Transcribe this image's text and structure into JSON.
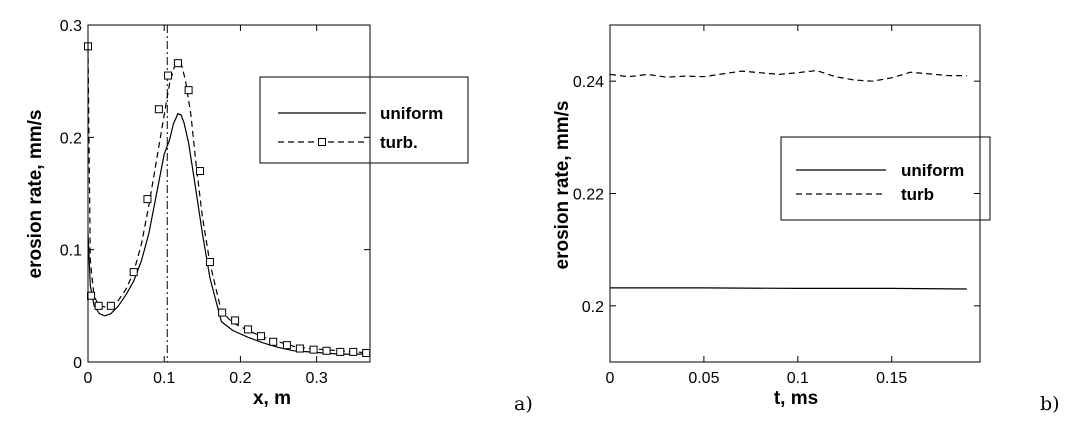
{
  "chart_data": [
    {
      "type": "line",
      "panel_label": "a)",
      "xlabel": "x, m",
      "ylabel": "erosion rate, mm/s",
      "xlim": [
        0,
        0.37
      ],
      "ylim": [
        0,
        0.3
      ],
      "x_ticks": [
        "0",
        "0.1",
        "0.2",
        "0.3"
      ],
      "y_ticks": [
        "0",
        "0.1",
        "0.2",
        "0.3"
      ],
      "x_tick_values": [
        0,
        0.1,
        0.2,
        0.3
      ],
      "y_tick_values": [
        0,
        0.1,
        0.2,
        0.3
      ],
      "vertical_reference_line_x": 0.104,
      "legend_position": "top-right",
      "series": [
        {
          "name": "uniform",
          "style": "solid",
          "x": [
            0,
            0.003,
            0.008,
            0.015,
            0.022,
            0.03,
            0.04,
            0.05,
            0.06,
            0.07,
            0.08,
            0.09,
            0.1,
            0.107,
            0.112,
            0.118,
            0.122,
            0.126,
            0.132,
            0.14,
            0.15,
            0.16,
            0.175,
            0.19,
            0.21,
            0.23,
            0.25,
            0.27,
            0.29,
            0.31,
            0.33,
            0.35,
            0.37
          ],
          "y": [
            0.115,
            0.068,
            0.05,
            0.043,
            0.041,
            0.043,
            0.05,
            0.06,
            0.072,
            0.09,
            0.115,
            0.15,
            0.185,
            0.198,
            0.212,
            0.221,
            0.22,
            0.213,
            0.195,
            0.16,
            0.115,
            0.075,
            0.036,
            0.028,
            0.022,
            0.017,
            0.013,
            0.01,
            0.009,
            0.008,
            0.007,
            0.007,
            0.007
          ]
        },
        {
          "name": "turb.",
          "style": "dashed",
          "markers": "square",
          "x": [
            0,
            0.003,
            0.008,
            0.015,
            0.022,
            0.03,
            0.04,
            0.05,
            0.06,
            0.07,
            0.08,
            0.09,
            0.1,
            0.107,
            0.113,
            0.118,
            0.123,
            0.128,
            0.135,
            0.142,
            0.15,
            0.16,
            0.175,
            0.19,
            0.21,
            0.23,
            0.25,
            0.27,
            0.29,
            0.31,
            0.33,
            0.35,
            0.37
          ],
          "y": [
            0.28,
            0.09,
            0.058,
            0.05,
            0.049,
            0.05,
            0.055,
            0.065,
            0.08,
            0.105,
            0.14,
            0.18,
            0.22,
            0.248,
            0.262,
            0.267,
            0.264,
            0.25,
            0.22,
            0.175,
            0.13,
            0.088,
            0.045,
            0.035,
            0.028,
            0.022,
            0.018,
            0.014,
            0.012,
            0.011,
            0.01,
            0.009,
            0.008
          ],
          "marker_x": [
            0,
            0.004,
            0.014,
            0.03,
            0.06,
            0.078,
            0.093,
            0.105,
            0.118,
            0.132,
            0.147,
            0.16,
            0.176,
            0.193,
            0.21,
            0.227,
            0.243,
            0.261,
            0.278,
            0.296,
            0.313,
            0.331,
            0.348,
            0.365
          ],
          "marker_y": [
            0.281,
            0.059,
            0.05,
            0.05,
            0.08,
            0.145,
            0.225,
            0.255,
            0.266,
            0.242,
            0.17,
            0.089,
            0.044,
            0.037,
            0.029,
            0.023,
            0.018,
            0.015,
            0.012,
            0.011,
            0.01,
            0.009,
            0.009,
            0.008
          ]
        }
      ]
    },
    {
      "type": "line",
      "panel_label": "b)",
      "xlabel": "t, ms",
      "ylabel": "erosion rate, mm/s",
      "xlim": [
        0,
        0.197
      ],
      "ylim": [
        0.19,
        0.25
      ],
      "x_ticks": [
        "0",
        "0.05",
        "0.1",
        "0.15"
      ],
      "y_ticks": [
        "0.2",
        "0.22",
        "0.24"
      ],
      "x_tick_values": [
        0,
        0.05,
        0.1,
        0.15
      ],
      "y_tick_values": [
        0.2,
        0.22,
        0.24
      ],
      "legend_position": "middle-right",
      "series": [
        {
          "name": "uniform",
          "style": "solid",
          "x": [
            0,
            0.05,
            0.1,
            0.15,
            0.19
          ],
          "y": [
            0.2032,
            0.2032,
            0.2031,
            0.2031,
            0.203
          ]
        },
        {
          "name": "turb",
          "style": "dashed",
          "x": [
            0,
            0.01,
            0.02,
            0.03,
            0.04,
            0.05,
            0.06,
            0.07,
            0.08,
            0.09,
            0.1,
            0.11,
            0.12,
            0.13,
            0.14,
            0.15,
            0.16,
            0.17,
            0.18,
            0.19
          ],
          "y": [
            0.2412,
            0.2408,
            0.2412,
            0.2407,
            0.2409,
            0.2408,
            0.2413,
            0.2418,
            0.2415,
            0.2412,
            0.2415,
            0.2419,
            0.2408,
            0.2402,
            0.24,
            0.2406,
            0.2416,
            0.2413,
            0.241,
            0.241
          ]
        }
      ]
    }
  ]
}
